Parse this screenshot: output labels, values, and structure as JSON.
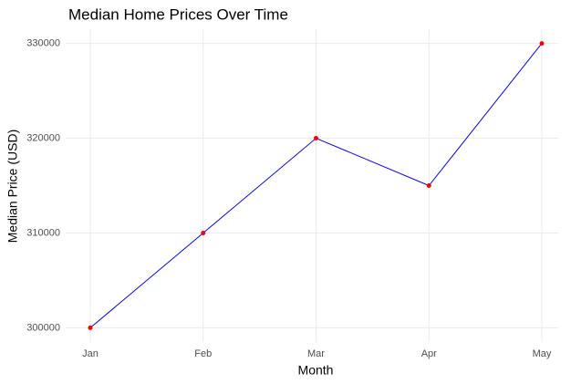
{
  "chart_data": {
    "type": "line",
    "title": "Median Home Prices Over Time",
    "x_label": "Month",
    "y_label": "Median Price (USD)",
    "categories": [
      "Jan",
      "Feb",
      "Mar",
      "Apr",
      "May"
    ],
    "values": [
      300000,
      310000,
      320000,
      315000,
      330000
    ],
    "line_color": "#0000ff",
    "point_color": "#ff0000",
    "ylim": [
      298500,
      331500
    ],
    "yticks": [
      300000,
      310000,
      320000,
      330000
    ],
    "grid": true
  }
}
